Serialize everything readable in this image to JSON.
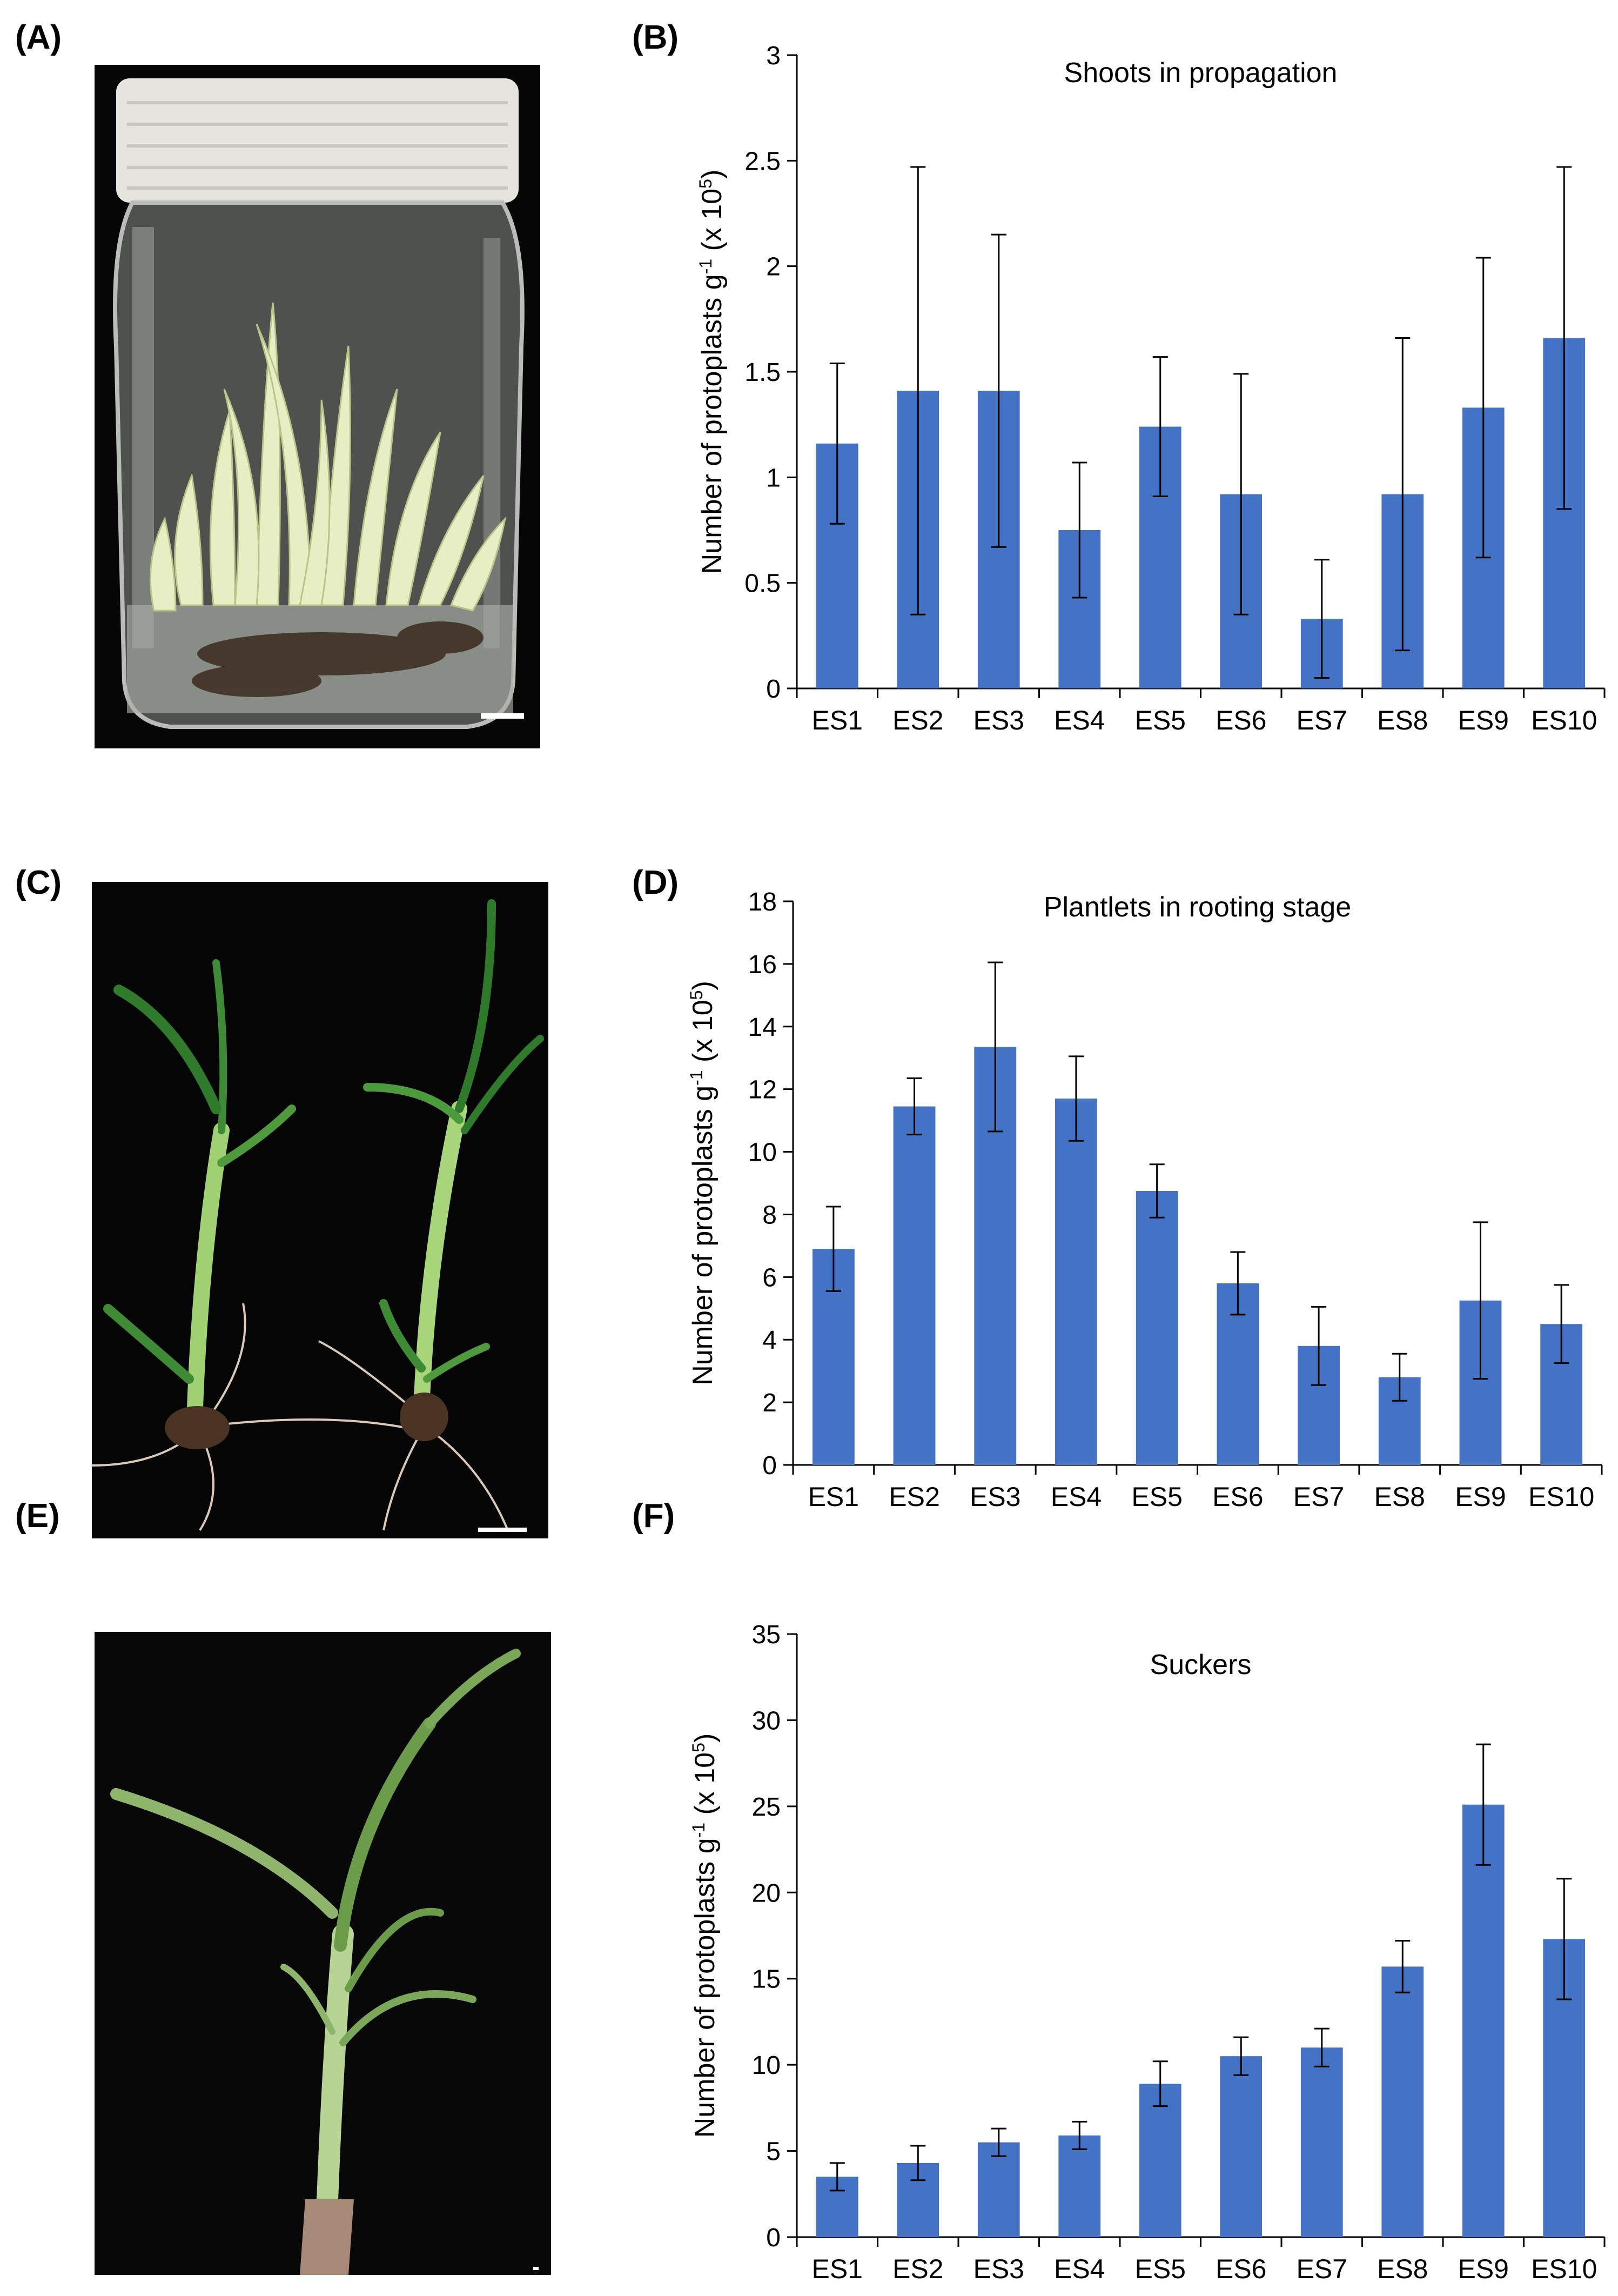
{
  "panels": {
    "a": "(A)",
    "b": "(B)",
    "c": "(C)",
    "d": "(D)",
    "e": "(E)",
    "f": "(F)"
  },
  "colors": {
    "bar": "#4472c4",
    "axis": "#000000",
    "photo_bg": "#050505"
  },
  "chart_data": [
    {
      "type": "bar",
      "title": "Shoots in propagation",
      "ylabel": "Number of protoplasts g-1 (x 105)",
      "ylabel_parts": {
        "main": "Number of protoplasts g",
        "exp1": "-1",
        "mid": " (x 10",
        "exp2": "5",
        "end": ")"
      },
      "categories": [
        "ES1",
        "ES2",
        "ES3",
        "ES4",
        "ES5",
        "ES6",
        "ES7",
        "ES8",
        "ES9",
        "ES10"
      ],
      "values": [
        1.16,
        1.41,
        1.41,
        0.75,
        1.24,
        0.92,
        0.33,
        0.92,
        1.33,
        1.66
      ],
      "errors": [
        0.38,
        1.06,
        0.74,
        0.32,
        0.33,
        0.57,
        0.28,
        0.74,
        0.71,
        0.81
      ],
      "ylim": [
        0,
        3
      ],
      "yticks": [
        0,
        0.5,
        1,
        1.5,
        2,
        2.5,
        3
      ],
      "ytick_labels": [
        "0",
        "0.5",
        "1",
        "1.5",
        "2",
        "2.5",
        "3"
      ]
    },
    {
      "type": "bar",
      "title": "Plantlets in rooting stage",
      "ylabel": "Number of protoplasts g-1 (x 105)",
      "ylabel_parts": {
        "main": "Number of protoplasts g",
        "exp1": "-1",
        "mid": " (x 10",
        "exp2": "5",
        "end": ")"
      },
      "categories": [
        "ES1",
        "ES2",
        "ES3",
        "ES4",
        "ES5",
        "ES6",
        "ES7",
        "ES8",
        "ES9",
        "ES10"
      ],
      "values": [
        6.9,
        11.45,
        13.35,
        11.7,
        8.75,
        5.8,
        3.8,
        2.8,
        5.25,
        4.5
      ],
      "errors": [
        1.35,
        0.9,
        2.7,
        1.35,
        0.85,
        1.0,
        1.25,
        0.75,
        2.5,
        1.25
      ],
      "ylim": [
        0,
        18
      ],
      "yticks": [
        0,
        2,
        4,
        6,
        8,
        10,
        12,
        14,
        16,
        18
      ],
      "ytick_labels": [
        "0",
        "2",
        "4",
        "6",
        "8",
        "10",
        "12",
        "14",
        "16",
        "18"
      ]
    },
    {
      "type": "bar",
      "title": "Suckers",
      "ylabel": "Number of protoplasts g-1 (x 105)",
      "ylabel_parts": {
        "main": "Number of protoplasts g",
        "exp1": "-1",
        "mid": " (x 10",
        "exp2": "5",
        "end": ")"
      },
      "categories": [
        "ES1",
        "ES2",
        "ES3",
        "ES4",
        "ES5",
        "ES6",
        "ES7",
        "ES8",
        "ES9",
        "ES10"
      ],
      "values": [
        3.5,
        4.3,
        5.5,
        5.9,
        8.9,
        10.5,
        11.0,
        15.7,
        25.1,
        17.3
      ],
      "errors": [
        0.8,
        1.0,
        0.8,
        0.8,
        1.3,
        1.1,
        1.1,
        1.5,
        3.5,
        3.5
      ],
      "ylim": [
        0,
        35
      ],
      "yticks": [
        0,
        5,
        10,
        15,
        20,
        25,
        30,
        35
      ],
      "ytick_labels": [
        "0",
        "5",
        "10",
        "15",
        "20",
        "25",
        "30",
        "35"
      ]
    }
  ]
}
